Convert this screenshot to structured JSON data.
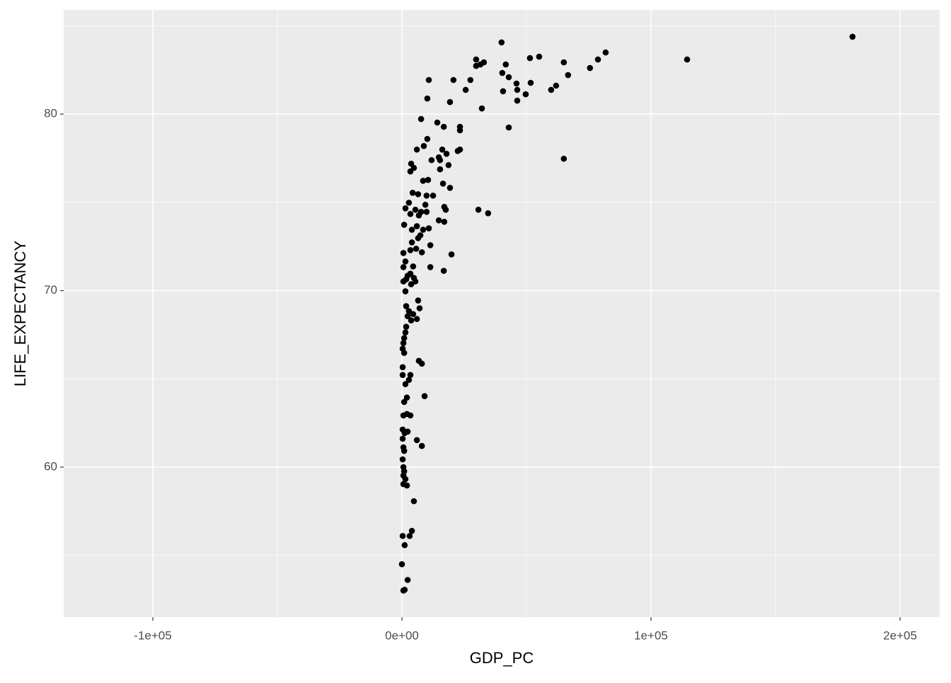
{
  "chart_data": {
    "type": "scatter",
    "x_label": "GDP_PC",
    "y_label": "LIFE_EXPECTANCY",
    "color": "#000000",
    "panel_background": "#ebebeb",
    "grid": true,
    "xlim": [
      -135800,
      215900
    ],
    "ylim": [
      51.5,
      85.9
    ],
    "xticks": [
      {
        "value": -100000,
        "label": "-1e+05"
      },
      {
        "value": 0,
        "label": "0e+00"
      },
      {
        "value": 100000,
        "label": "1e+05"
      },
      {
        "value": 200000,
        "label": "2e+05"
      }
    ],
    "x_minor_breaks": [
      -50000,
      50000,
      150000
    ],
    "yticks": [
      60,
      70,
      80
    ],
    "y_minor_breaks": [
      55,
      65,
      75,
      85
    ],
    "x": [
      180900,
      114500,
      81800,
      78700,
      75500,
      66700,
      65000,
      61900,
      59900,
      55100,
      51400,
      51700,
      49700,
      46000,
      46300,
      46300,
      42900,
      41700,
      40300,
      40600,
      40000,
      42900,
      65000,
      32900,
      31500,
      29800,
      29800,
      27500,
      25600,
      20700,
      19300,
      10800,
      10200,
      32100,
      30700,
      34600,
      23300,
      23300,
      16800,
      14200,
      7700,
      10200,
      8800,
      23300,
      22400,
      16200,
      17900,
      14800,
      15300,
      11900,
      6000,
      3700,
      4800,
      18700,
      15300,
      3400,
      10500,
      8500,
      16500,
      19300,
      4300,
      6500,
      9900,
      12500,
      2800,
      9400,
      17000,
      17600,
      1400,
      5400,
      7700,
      9900,
      3400,
      6800,
      14800,
      17000,
      900,
      6000,
      4000,
      8500,
      10800,
      7400,
      6500,
      4000,
      11400,
      5700,
      3400,
      8000,
      19900,
      600,
      1400,
      4500,
      600,
      11400,
      16800,
      3400,
      2300,
      4800,
      1700,
      600,
      5400,
      3700,
      1400,
      6500,
      1700,
      7100,
      2800,
      4500,
      2300,
      6000,
      3700,
      1700,
      1400,
      900,
      600,
      300,
      900,
      6800,
      8000,
      300,
      3400,
      300,
      2800,
      1400,
      9100,
      2000,
      900,
      2000,
      600,
      3400,
      300,
      2300,
      1100,
      300,
      6000,
      8000,
      600,
      900,
      300,
      600,
      900,
      600,
      1400,
      600,
      2000,
      4800,
      4000,
      3100,
      300,
      1100,
      0,
      2300,
      600,
      1100
    ],
    "values": [
      84.38,
      83.09,
      83.49,
      83.09,
      82.61,
      82.21,
      82.93,
      81.61,
      81.37,
      83.25,
      83.17,
      81.77,
      81.12,
      81.73,
      81.37,
      80.76,
      82.09,
      82.81,
      82.33,
      81.29,
      84.06,
      79.24,
      77.47,
      82.93,
      82.81,
      83.09,
      82.73,
      81.93,
      81.37,
      81.93,
      80.68,
      81.93,
      80.88,
      80.32,
      74.58,
      74.38,
      79.28,
      79.08,
      79.28,
      79.52,
      79.72,
      78.59,
      78.19,
      77.99,
      77.91,
      77.99,
      77.75,
      77.55,
      77.39,
      77.39,
      77.99,
      77.19,
      76.95,
      77.11,
      76.87,
      76.75,
      76.27,
      76.22,
      76.06,
      75.82,
      75.54,
      75.46,
      75.38,
      75.38,
      74.98,
      74.86,
      74.74,
      74.58,
      74.66,
      74.58,
      74.46,
      74.46,
      74.34,
      74.26,
      73.98,
      73.9,
      73.73,
      73.65,
      73.45,
      73.45,
      73.53,
      73.13,
      72.97,
      72.73,
      72.57,
      72.37,
      72.29,
      72.17,
      72.05,
      72.13,
      71.65,
      71.37,
      71.33,
      71.33,
      71.12,
      70.96,
      70.84,
      70.72,
      70.64,
      70.52,
      70.52,
      70.36,
      69.96,
      69.44,
      69.12,
      69.0,
      68.84,
      68.67,
      68.55,
      68.39,
      68.31,
      67.95,
      67.63,
      67.31,
      67.03,
      66.71,
      66.47,
      66.02,
      65.86,
      65.66,
      65.22,
      65.22,
      64.94,
      64.7,
      64.02,
      63.94,
      63.69,
      63.01,
      62.93,
      62.93,
      62.13,
      62.01,
      61.93,
      61.61,
      61.53,
      61.2,
      61.12,
      60.92,
      60.44,
      60.0,
      59.76,
      59.52,
      59.32,
      59.04,
      58.96,
      58.07,
      56.39,
      56.1,
      56.1,
      55.58,
      54.5,
      53.61,
      53.01,
      53.05
    ]
  }
}
